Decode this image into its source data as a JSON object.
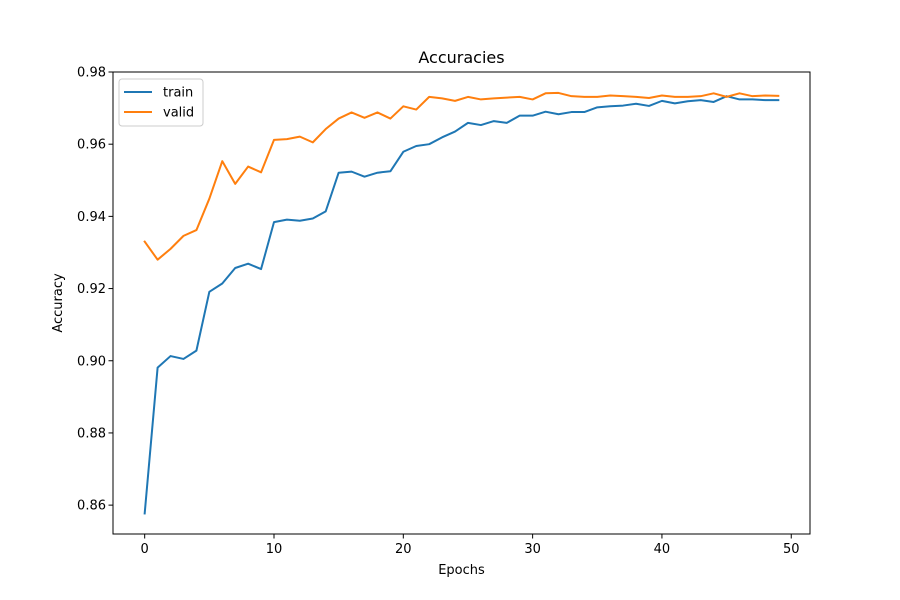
{
  "chart_data": {
    "type": "line",
    "title": "Accuracies",
    "xlabel": "Epochs",
    "ylabel": "Accuracy",
    "xlim": [
      -2.45,
      51.45
    ],
    "ylim": [
      0.852,
      0.98
    ],
    "xticks": [
      0,
      10,
      20,
      30,
      40,
      50
    ],
    "yticks": [
      0.86,
      0.88,
      0.9,
      0.92,
      0.94,
      0.96,
      0.98
    ],
    "ytick_labels": [
      "0.86",
      "0.88",
      "0.90",
      "0.92",
      "0.94",
      "0.96",
      "0.98"
    ],
    "grid": false,
    "legend": "top-left",
    "x": [
      0,
      1,
      2,
      3,
      4,
      5,
      6,
      7,
      8,
      9,
      10,
      11,
      12,
      13,
      14,
      15,
      16,
      17,
      18,
      19,
      20,
      21,
      22,
      23,
      24,
      25,
      26,
      27,
      28,
      29,
      30,
      31,
      32,
      33,
      34,
      35,
      36,
      37,
      38,
      39,
      40,
      41,
      42,
      43,
      44,
      45,
      46,
      47,
      48,
      49
    ],
    "series": [
      {
        "name": "train",
        "color": "#1f77b4",
        "values": [
          0.8577,
          0.8981,
          0.9013,
          0.9005,
          0.9028,
          0.9191,
          0.9214,
          0.9257,
          0.9269,
          0.9254,
          0.9384,
          0.9391,
          0.9388,
          0.9394,
          0.9414,
          0.9521,
          0.9524,
          0.951,
          0.9521,
          0.9525,
          0.9579,
          0.9595,
          0.96,
          0.9619,
          0.9635,
          0.9659,
          0.9653,
          0.9664,
          0.9659,
          0.9679,
          0.9679,
          0.969,
          0.9683,
          0.9689,
          0.9689,
          0.9702,
          0.9705,
          0.9707,
          0.9712,
          0.9706,
          0.972,
          0.9713,
          0.9719,
          0.9722,
          0.9717,
          0.9733,
          0.9724,
          0.9724,
          0.9722,
          0.9722
        ]
      },
      {
        "name": "valid",
        "color": "#ff7f0e",
        "values": [
          0.933,
          0.928,
          0.931,
          0.9346,
          0.9362,
          0.9449,
          0.9553,
          0.949,
          0.9538,
          0.9522,
          0.9612,
          0.9614,
          0.9621,
          0.9605,
          0.9642,
          0.9671,
          0.9688,
          0.9673,
          0.9688,
          0.9671,
          0.9705,
          0.9696,
          0.9731,
          0.9727,
          0.972,
          0.9731,
          0.9724,
          0.9727,
          0.9729,
          0.9731,
          0.9724,
          0.9741,
          0.9742,
          0.9733,
          0.9731,
          0.9731,
          0.9735,
          0.9733,
          0.9731,
          0.9728,
          0.9735,
          0.9731,
          0.9731,
          0.9733,
          0.9741,
          0.9731,
          0.9741,
          0.9733,
          0.9735,
          0.9734
        ]
      }
    ]
  }
}
